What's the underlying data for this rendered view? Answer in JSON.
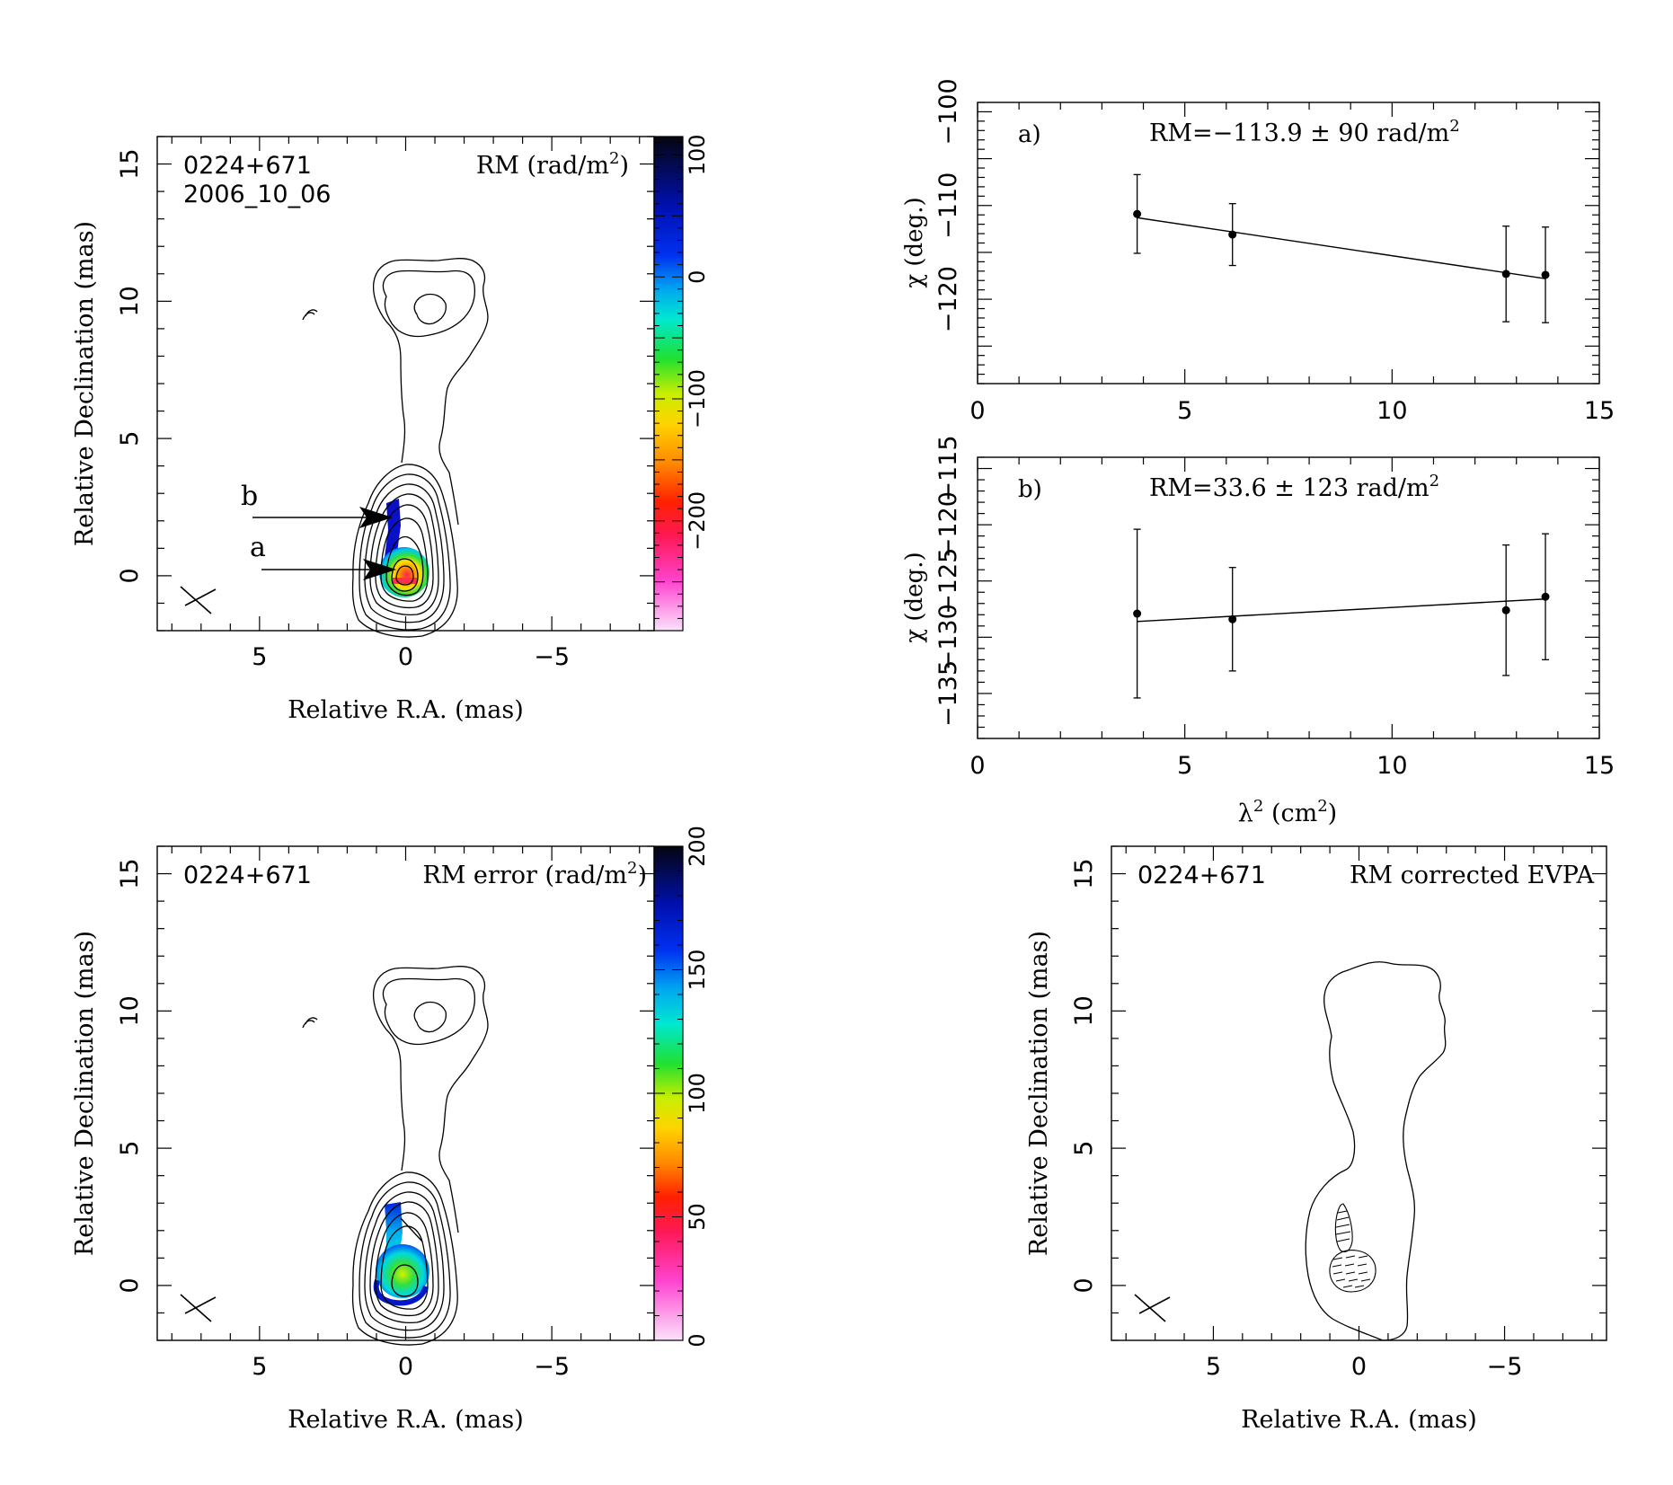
{
  "source_name": "0224+671",
  "epoch": "2006_10_06",
  "maps": {
    "xlabel": "Relative R.A. (mas)",
    "ylabel": "Relative Declination (mas)",
    "xticks": [
      5,
      0,
      -5
    ],
    "yticks": [
      0,
      5,
      10,
      15
    ],
    "xlim": [
      8.5,
      -8.5
    ],
    "ylim": [
      -2,
      16
    ]
  },
  "panels": {
    "rm_map": {
      "source": "0224+671",
      "epoch": "2006_10_06",
      "label": "RM (rad/m",
      "label_tail": ")",
      "colorbar_ticks": [
        "100",
        "0",
        "−100",
        "−200"
      ],
      "colorbar_range": [
        -290,
        115
      ],
      "markers": [
        {
          "name": "b",
          "target_ra": -0.1,
          "target_dec": 2.1
        },
        {
          "name": "a",
          "target_ra": 0.0,
          "target_dec": 0.3
        }
      ]
    },
    "rm_error_map": {
      "source": "0224+671",
      "label": "RM error (rad/m",
      "label_tail": ")",
      "colorbar_ticks": [
        "200",
        "150",
        "100",
        "50",
        "0"
      ],
      "colorbar_range": [
        0,
        200
      ]
    },
    "evpa_map": {
      "source": "0224+671",
      "label": "RM corrected EVPA"
    }
  },
  "chart_data": [
    {
      "type": "scatter",
      "panel": "a)",
      "annotation": "RM=−113.9 ± 90 rad/m",
      "ylabel": "χ (deg.)",
      "xlim": [
        0,
        15
      ],
      "ylim": [
        -129,
        -99
      ],
      "xticks": [
        "0",
        "5",
        "10",
        "15"
      ],
      "yticks": [
        "−100",
        "−110",
        "−120"
      ],
      "x": [
        3.85,
        6.15,
        12.75,
        13.7
      ],
      "y": [
        -110.9,
        -113.1,
        -117.3,
        -117.4
      ],
      "yerr": [
        4.2,
        3.3,
        5.1,
        5.1
      ],
      "fit": {
        "x": [
          3.85,
          13.7
        ],
        "y": [
          -111.3,
          -117.8
        ]
      }
    },
    {
      "type": "scatter",
      "panel": "b)",
      "annotation": "RM=33.6 ± 123 rad/m",
      "ylabel": "χ (deg.)",
      "xlabel": "λ",
      "xlabel_tail": " (cm",
      "xlabel_end": ")",
      "xlim": [
        0,
        15
      ],
      "ylim": [
        -139,
        -114
      ],
      "xticks": [
        "0",
        "5",
        "10",
        "15"
      ],
      "yticks": [
        "−135",
        "−130",
        "−125",
        "−120",
        "−115"
      ],
      "x": [
        3.85,
        6.15,
        12.75,
        13.7
      ],
      "y": [
        -127.9,
        -128.4,
        -127.6,
        -126.4
      ],
      "yerr": [
        7.5,
        4.6,
        5.8,
        5.6
      ],
      "fit": {
        "x": [
          3.85,
          13.7
        ],
        "y": [
          -128.6,
          -126.6
        ]
      }
    }
  ]
}
